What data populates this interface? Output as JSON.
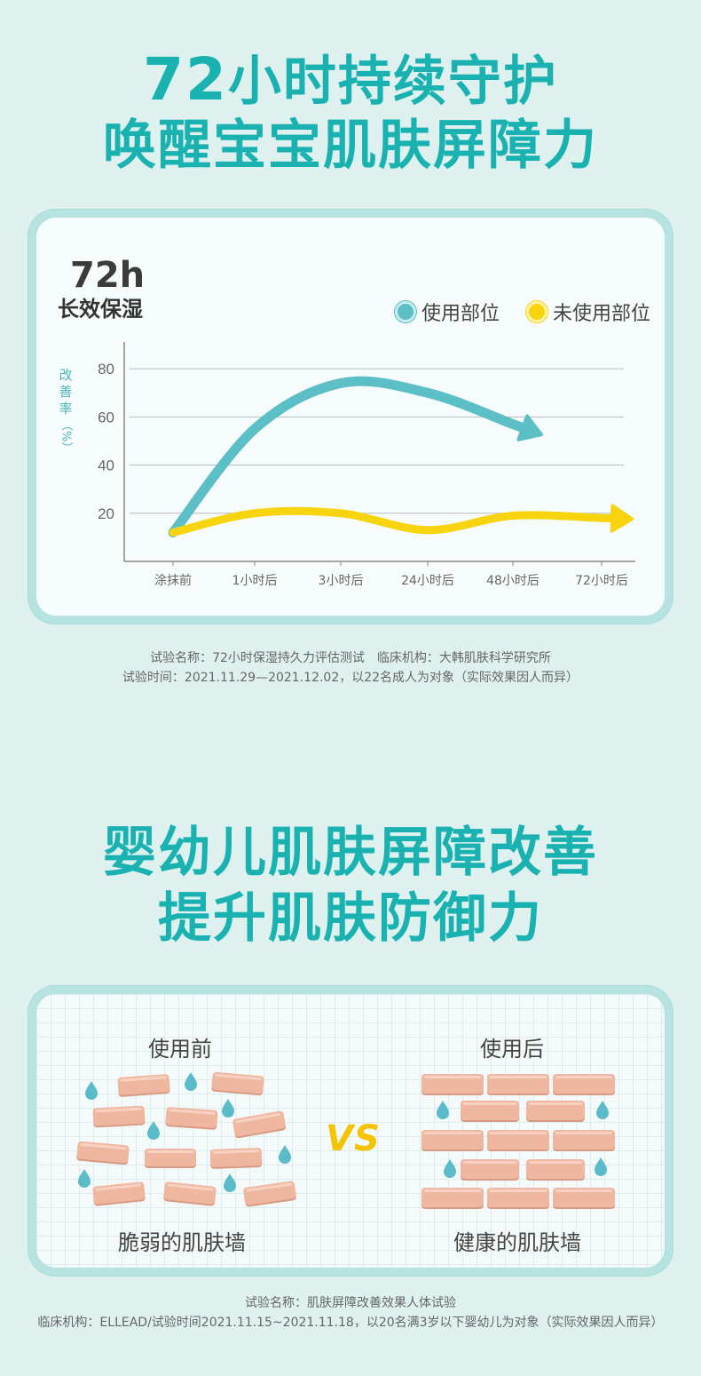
{
  "section1": {
    "title_number": "72",
    "title_line1_rest": "小时持续守护",
    "title_line2": "唤醒宝宝肌肤屏障力"
  },
  "chart_card": {
    "headline": "72h",
    "subhead": "长效保湿"
  },
  "chart_data": {
    "type": "line",
    "xlabel": "",
    "ylabel": "改善率（%）",
    "ylabel_chars": [
      "改",
      "善",
      "率",
      "（%）"
    ],
    "ylim": [
      0,
      90
    ],
    "categories": [
      "涂抹前",
      "1小时后",
      "3小时后",
      "24小时后",
      "48小时后",
      "72小时后"
    ],
    "yticks": [
      20,
      40,
      60,
      80
    ],
    "legend_position": "top-right",
    "grid": true,
    "series": [
      {
        "name": "使用部位",
        "color": "#5dbfc6",
        "values": [
          12,
          55,
          74,
          70,
          57,
          null
        ]
      },
      {
        "name": "未使用部位",
        "color": "#f7d40e",
        "values": [
          12,
          20,
          20,
          13,
          19,
          18
        ]
      }
    ]
  },
  "note1": {
    "line1": "试验名称：72小时保湿持久力评估测试　临床机构：大韩肌肤科学研究所",
    "line2": "试验时间：2021.11.29—2021.12.02，以22名成人为对象（实际效果因人而异）"
  },
  "section2": {
    "title_line1": "婴幼儿肌肤屏障改善",
    "title_line2": "提升肌肤防御力"
  },
  "compare_card": {
    "before_label": "使用前",
    "after_label": "使用后",
    "vs": "VS",
    "before_caption": "脆弱的肌肤墙",
    "after_caption": "健康的肌肤墙",
    "brick_color": "#f0b7a0",
    "drop_color": "#5bbcc9"
  },
  "note2": {
    "line1": "试验名称：肌肤屏障改善效果人体试验",
    "line2": "临床机构：ELLEAD/试验时间2021.11.15~2021.11.18，以20名满3岁以下婴幼儿为对象（实际效果因人而异）"
  }
}
